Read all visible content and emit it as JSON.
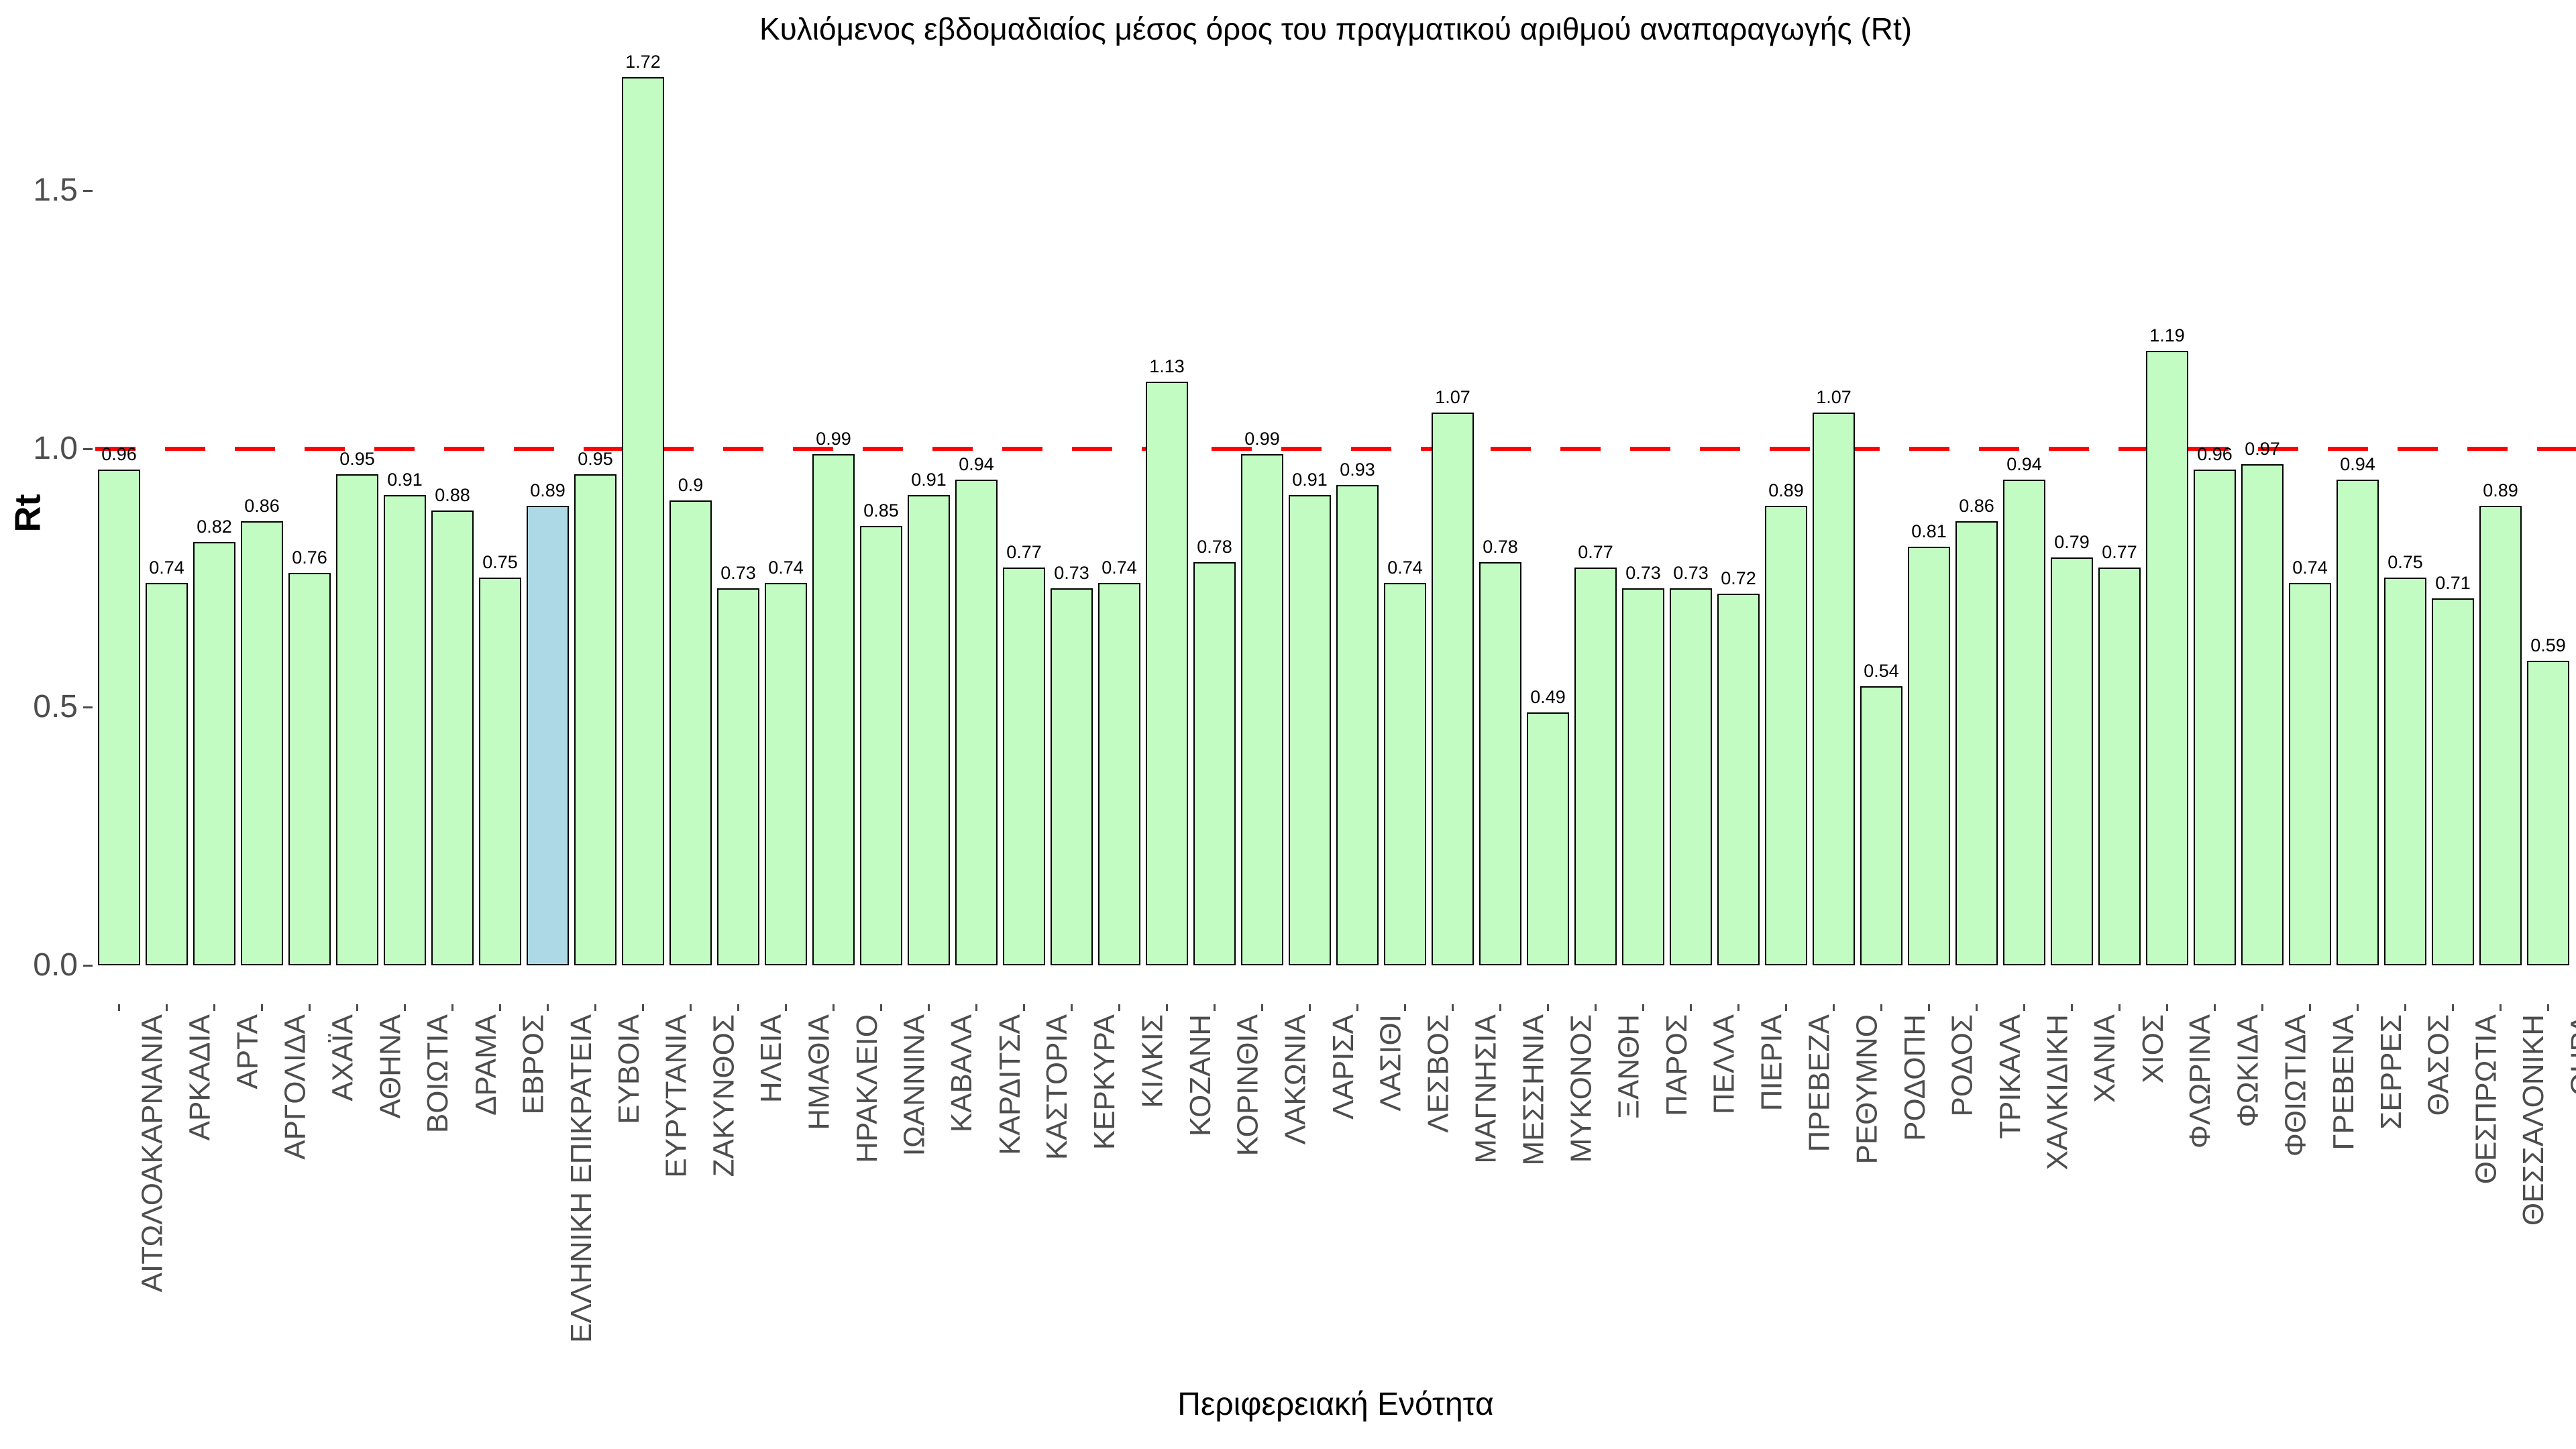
{
  "title": "Κυλιόμενος εβδομαδιαίος μέσος όρος του πραγματικού αριθμού αναπαραγωγής (Rt)",
  "x_axis_title": "Περιφερειακή Ενότητα",
  "y_axis_title": "Rt",
  "y_tick_labels": [
    "0.0",
    "0.5",
    "1.0",
    "1.5"
  ],
  "colors": {
    "bar_fill": "#C2FCC2",
    "highlight_fill": "#ADD8E6",
    "bar_border": "#000000",
    "reference_line": "#FF0000",
    "axis_text": "#4D4D4D",
    "title_text": "#000000"
  },
  "chart_data": {
    "type": "bar",
    "title": "Κυλιόμενος εβδομαδιαίος μέσος όρος του πραγματικού αριθμού αναπαραγωγής (Rt)",
    "xlabel": "Περιφερειακή Ενότητα",
    "ylabel": "Rt",
    "ylim": [
      0,
      1.75
    ],
    "y_ticks": [
      0,
      0.5,
      1.0,
      1.5
    ],
    "grid": false,
    "legend_position": "none",
    "reference_line_y": 1.0,
    "highlight_category": "ΕΛΛΗΝΙΚΗ ΕΠΙΚΡΑΤΕΙΑ",
    "highlight_index": 9,
    "categories": [
      "ΑΙΤΩΛΟΑΚΑΡΝΑΝΙΑ",
      "ΑΡΚΑΔΙΑ",
      "ΑΡΤΑ",
      "ΑΡΓΟΛΙΔΑ",
      "ΑΧΑΪΑ",
      "ΑΘΗΝΑ",
      "ΒΟΙΩΤΙΑ",
      "ΔΡΑΜΑ",
      "ΕΒΡΟΣ",
      "ΕΛΛΗΝΙΚΗ ΕΠΙΚΡΑΤΕΙΑ",
      "ΕΥΒΟΙΑ",
      "ΕΥΡΥΤΑΝΙΑ",
      "ΖΑΚΥΝΘΟΣ",
      "ΗΛΕΙΑ",
      "ΗΜΑΘΙΑ",
      "ΗΡΑΚΛΕΙΟ",
      "ΙΩΑΝΝΙΝΑ",
      "ΚΑΒΑΛΑ",
      "ΚΑΡΔΙΤΣΑ",
      "ΚΑΣΤΟΡΙΑ",
      "ΚΕΡΚΥΡΑ",
      "ΚΙΛΚΙΣ",
      "ΚΟΖΑΝΗ",
      "ΚΟΡΙΝΘΙΑ",
      "ΛΑΚΩΝΙΑ",
      "ΛΑΡΙΣΑ",
      "ΛΑΣΙΘΙ",
      "ΛΕΣΒΟΣ",
      "ΜΑΓΝΗΣΙΑ",
      "ΜΕΣΣΗΝΙΑ",
      "ΜΥΚΟΝΟΣ",
      "ΞΑΝΘΗ",
      "ΠΑΡΟΣ",
      "ΠΕΛΛΑ",
      "ΠΙΕΡΙΑ",
      "ΠΡΕΒΕΖΑ",
      "ΡΕΘΥΜΝΟ",
      "ΡΟΔΟΠΗ",
      "ΡΟΔΟΣ",
      "ΤΡΙΚΑΛΑ",
      "ΧΑΛΚΙΔΙΚΗ",
      "ΧΑΝΙΑ",
      "ΧΙΟΣ",
      "ΦΛΩΡΙΝΑ",
      "ΦΩΚΙΔΑ",
      "ΦΘΙΩΤΙΔΑ",
      "ΓΡΕΒΕΝΑ",
      "ΣΕΡΡΕΣ",
      "ΘΑΣΟΣ",
      "ΘΕΣΠΡΩΤΙΑ",
      "ΘΕΣΣΑΛΟΝΙΚΗ",
      "ΘΗΡΑ"
    ],
    "values": [
      0.96,
      0.74,
      0.82,
      0.86,
      0.76,
      0.95,
      0.91,
      0.88,
      0.75,
      0.89,
      0.95,
      1.72,
      0.9,
      0.73,
      0.74,
      0.99,
      0.85,
      0.91,
      0.94,
      0.77,
      0.73,
      0.74,
      1.13,
      0.78,
      0.99,
      0.91,
      0.93,
      0.74,
      1.07,
      0.78,
      0.49,
      0.77,
      0.73,
      0.73,
      0.72,
      0.89,
      1.07,
      0.54,
      0.81,
      0.86,
      0.94,
      0.79,
      0.77,
      1.19,
      0.96,
      0.97,
      0.74,
      0.94,
      0.75,
      0.71,
      0.89,
      0.59
    ]
  }
}
